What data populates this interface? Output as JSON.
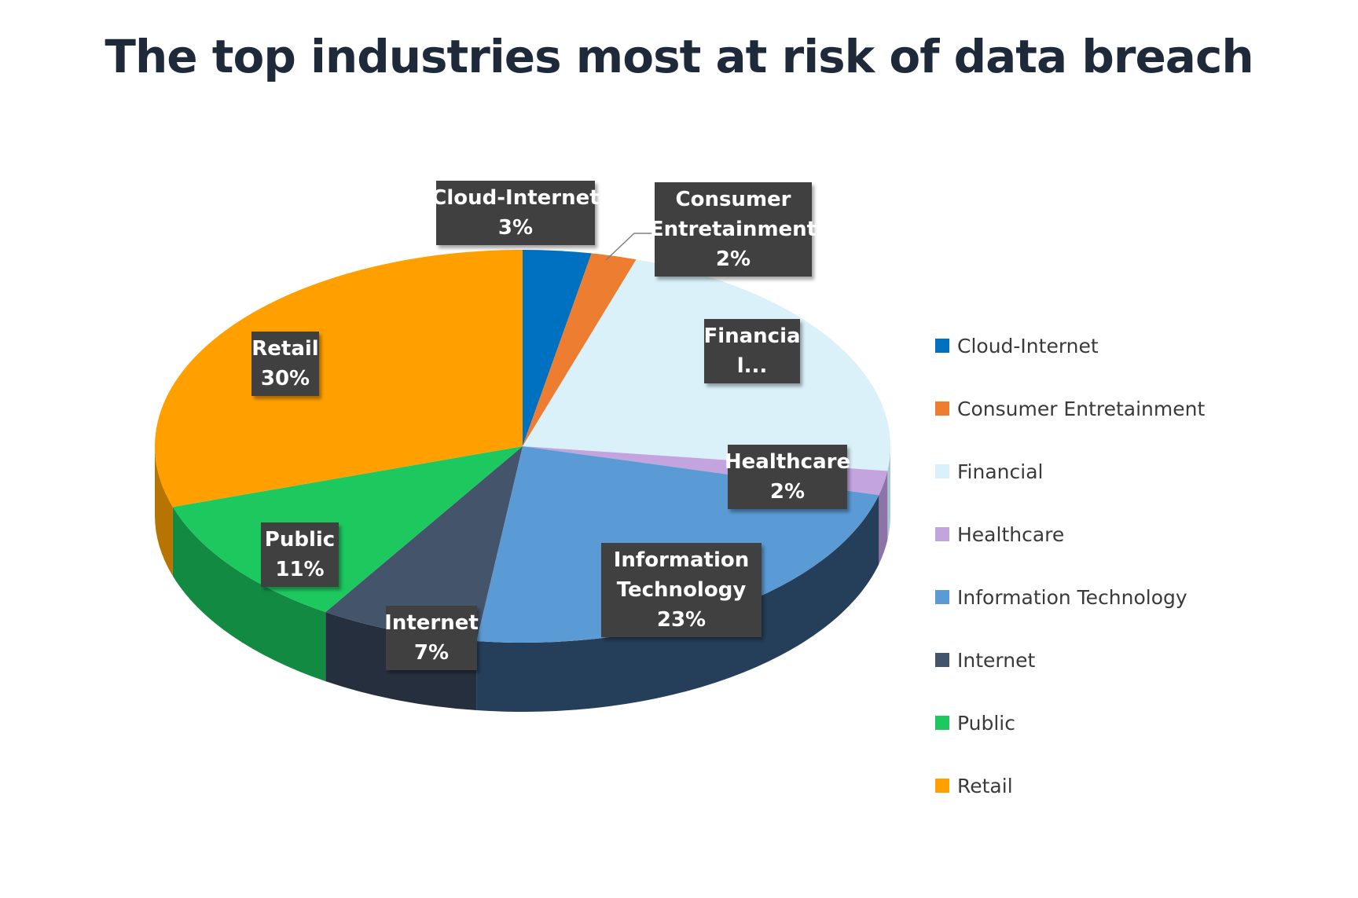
{
  "chart_data": {
    "type": "pie",
    "title": "The top industries most at risk of data breach",
    "style": "3d-pie",
    "legend_position": "right",
    "slices": [
      {
        "name": "Cloud-Internet",
        "value": 3,
        "label_lines": [
          "Cloud-Internet",
          "3%"
        ],
        "color": "#0070C0",
        "side_color": "#004a80"
      },
      {
        "name": "Consumer Entretainment",
        "value": 2,
        "label_lines": [
          "Consumer",
          "Entretainment",
          "2%"
        ],
        "color": "#ED7D31",
        "side_color": "#a45620"
      },
      {
        "name": "Financial",
        "value": 22,
        "label_lines": [
          "Financia",
          "l..."
        ],
        "color": "#DAF1FA",
        "side_color": "#a9c7d3"
      },
      {
        "name": "Healthcare",
        "value": 2,
        "label_lines": [
          "Healthcare",
          "2%"
        ],
        "color": "#C3A4DF",
        "side_color": "#8d73a6"
      },
      {
        "name": "Information Technology",
        "value": 23,
        "label_lines": [
          "Information",
          "Technology",
          "23%"
        ],
        "color": "#5B9BD5",
        "side_color": "#253f5b"
      },
      {
        "name": "Internet",
        "value": 7,
        "label_lines": [
          "Internet",
          "7%"
        ],
        "color": "#44546A",
        "side_color": "#262f3d"
      },
      {
        "name": "Public",
        "value": 11,
        "label_lines": [
          "Public",
          "11%"
        ],
        "color": "#1DC85F",
        "side_color": "#138a42"
      },
      {
        "name": "Retail",
        "value": 30,
        "label_lines": [
          "Retail",
          "30%"
        ],
        "color": "#FFA000",
        "side_color": "#b87400"
      }
    ]
  }
}
